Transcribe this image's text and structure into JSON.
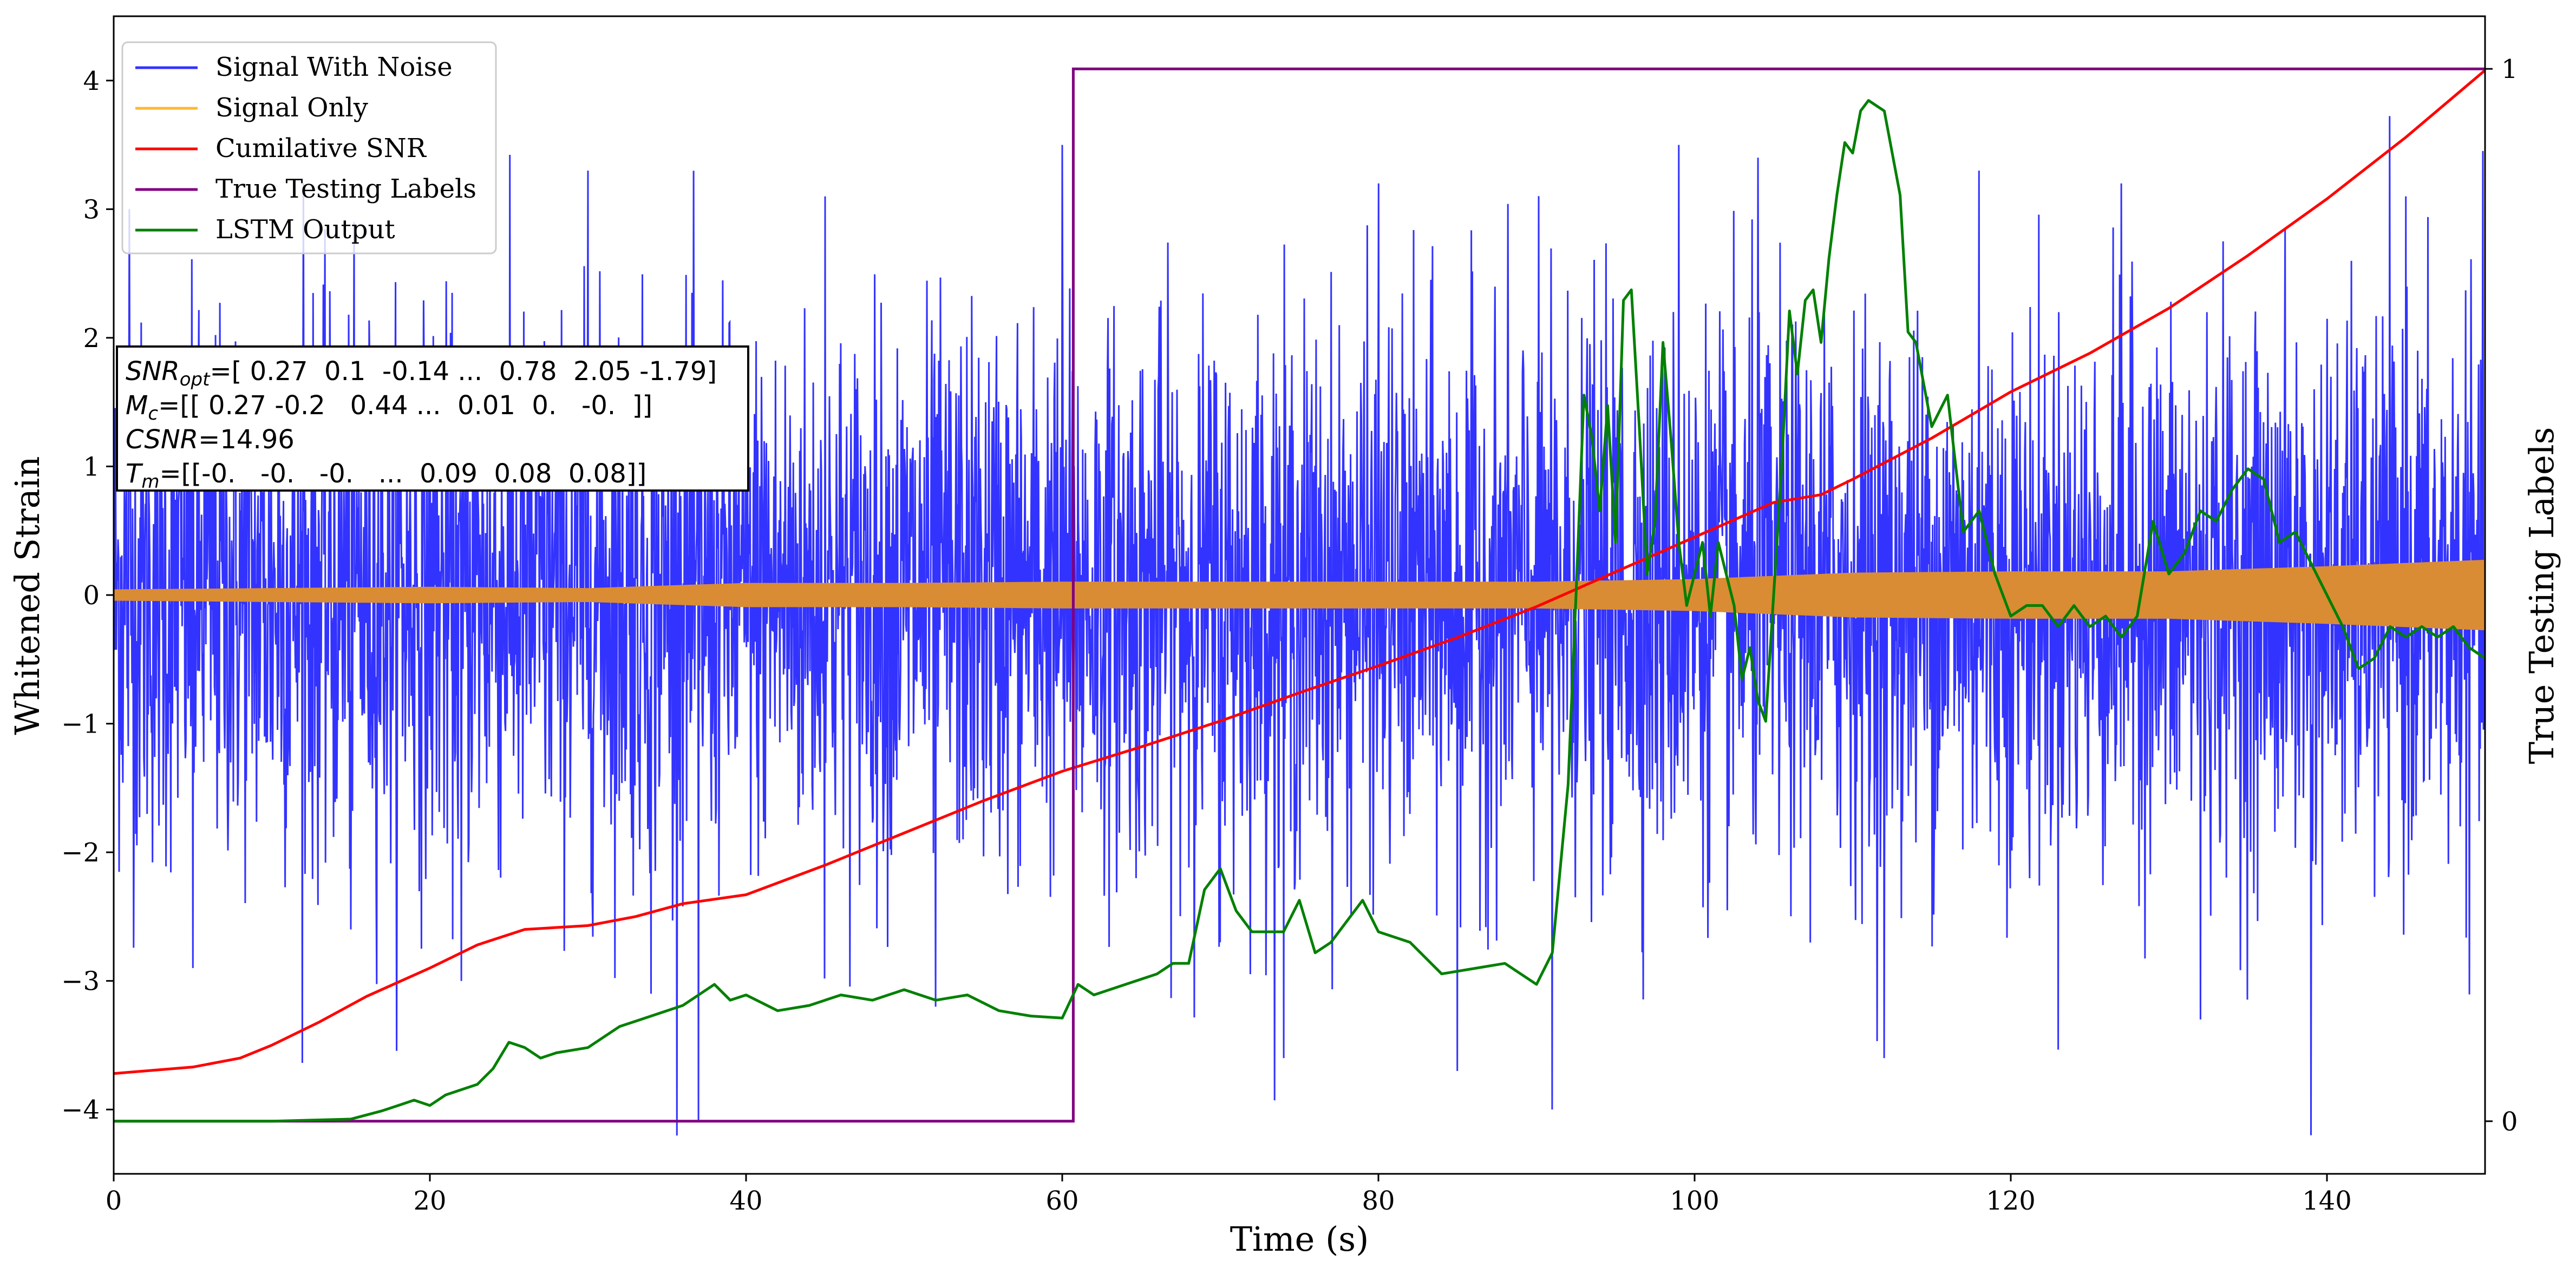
{
  "chart_data": {
    "type": "line",
    "xlabel": "Time (s)",
    "ylabel": "Whitened Strain",
    "y2label": "True Testing Labels",
    "xlim": [
      0,
      150
    ],
    "ylim": [
      -4.5,
      4.5
    ],
    "y2lim": [
      -0.05,
      1.05
    ],
    "xticks": [
      0,
      20,
      40,
      60,
      80,
      100,
      120,
      140
    ],
    "yticks": [
      -4,
      -3,
      -2,
      -1,
      0,
      1,
      2,
      3,
      4
    ],
    "y2ticks": [
      0,
      1
    ],
    "legend_position": "top-left",
    "colors": {
      "signal_with_noise": "#3333ff",
      "signal_only": "#d98c33",
      "signal_only_legend": "#ffb733",
      "cumulative_snr": "#ff0000",
      "true_labels": "#800080",
      "lstm": "#008000"
    },
    "series": [
      {
        "key": "signal_with_noise",
        "name": "Signal With Noise",
        "axis": "left",
        "envelope_x": [
          0,
          20,
          40,
          60,
          80,
          100,
          120,
          140,
          150
        ],
        "envelope_typical": [
          1.9,
          1.9,
          1.9,
          1.9,
          1.9,
          1.9,
          1.9,
          1.9,
          1.9
        ],
        "spike_x": [
          1,
          5,
          12,
          15,
          22,
          30,
          34,
          37,
          45,
          52,
          60,
          70,
          74,
          80,
          85,
          91,
          99,
          104,
          112,
          118,
          127,
          132,
          139,
          145
        ],
        "spike_y": [
          3.0,
          -2.9,
          3.2,
          -2.6,
          -3.0,
          3.3,
          -3.1,
          -4.1,
          3.1,
          -3.2,
          3.5,
          -2.7,
          -3.6,
          3.2,
          -3.7,
          -4.0,
          3.5,
          3.4,
          -3.6,
          3.3,
          3.2,
          -3.3,
          -4.2,
          3.1
        ]
      },
      {
        "key": "signal_only",
        "name": "Signal Only",
        "axis": "left",
        "x": [
          0,
          10,
          20,
          30,
          40,
          50,
          60,
          70,
          80,
          90,
          100,
          110,
          120,
          130,
          140,
          150
        ],
        "amplitude": [
          0.04,
          0.05,
          0.06,
          0.05,
          0.09,
          0.09,
          0.1,
          0.1,
          0.1,
          0.1,
          0.12,
          0.17,
          0.18,
          0.18,
          0.22,
          0.27
        ]
      },
      {
        "key": "cumulative_snr",
        "name": "Cumilative SNR",
        "axis": "left",
        "x": [
          0,
          5,
          8,
          10,
          13,
          16,
          20,
          23,
          26,
          30,
          33,
          36,
          40,
          45,
          50,
          55,
          60,
          65,
          70,
          75,
          80,
          85,
          90,
          95,
          100,
          105,
          108,
          110,
          115,
          120,
          125,
          130,
          135,
          140,
          145,
          150
        ],
        "y": [
          -3.72,
          -3.67,
          -3.6,
          -3.5,
          -3.32,
          -3.12,
          -2.9,
          -2.72,
          -2.6,
          -2.57,
          -2.5,
          -2.4,
          -2.33,
          -2.1,
          -1.85,
          -1.6,
          -1.37,
          -1.18,
          -0.98,
          -0.76,
          -0.55,
          -0.33,
          -0.09,
          0.18,
          0.45,
          0.72,
          0.78,
          0.9,
          1.22,
          1.58,
          1.88,
          2.23,
          2.64,
          3.08,
          3.56,
          4.08
        ]
      },
      {
        "key": "true_labels",
        "name": "True Testing Labels",
        "axis": "right",
        "x": [
          0,
          60.7,
          60.7,
          61.2,
          61.2,
          150
        ],
        "y": [
          0,
          0,
          1,
          1,
          1,
          1
        ]
      },
      {
        "key": "lstm",
        "name": "LSTM Output",
        "axis": "right",
        "x": [
          0,
          10,
          15,
          17,
          18,
          19,
          20,
          21,
          22,
          23,
          24,
          25,
          26,
          27,
          28,
          30,
          31,
          32,
          33,
          34,
          35,
          36,
          37,
          38,
          39,
          40,
          42,
          44,
          46,
          48,
          50,
          52,
          54,
          56,
          58,
          60,
          61,
          62,
          64,
          66,
          67,
          68,
          69,
          70,
          71,
          72,
          73,
          74,
          75,
          76,
          77,
          78,
          79,
          80,
          82,
          84,
          86,
          88,
          90,
          91,
          92,
          92.5,
          93,
          93.5,
          94,
          94.5,
          95,
          95.5,
          96,
          96.5,
          97,
          97.5,
          98,
          98.5,
          99,
          99.5,
          100,
          100.5,
          101,
          101.5,
          102,
          102.5,
          103,
          103.5,
          104,
          104.5,
          105,
          105.5,
          106,
          106.5,
          107,
          107.5,
          108,
          108.5,
          109,
          109.5,
          110,
          110.5,
          111,
          112,
          113,
          113.5,
          114,
          115,
          116,
          117,
          118,
          119,
          120,
          121,
          122,
          123,
          124,
          125,
          126,
          127,
          128,
          129,
          130,
          131,
          132,
          133,
          134,
          135,
          136,
          137,
          138,
          139,
          140,
          141,
          142,
          143,
          144,
          145,
          146,
          147,
          148,
          149,
          150
        ],
        "y": [
          0.0,
          0.0,
          0.002,
          0.01,
          0.015,
          0.02,
          0.015,
          0.025,
          0.03,
          0.035,
          0.05,
          0.075,
          0.07,
          0.06,
          0.065,
          0.07,
          0.08,
          0.09,
          0.095,
          0.1,
          0.105,
          0.11,
          0.12,
          0.13,
          0.115,
          0.12,
          0.105,
          0.11,
          0.12,
          0.115,
          0.125,
          0.115,
          0.12,
          0.105,
          0.1,
          0.098,
          0.13,
          0.12,
          0.13,
          0.14,
          0.15,
          0.15,
          0.22,
          0.24,
          0.2,
          0.18,
          0.18,
          0.18,
          0.21,
          0.16,
          0.17,
          0.19,
          0.21,
          0.18,
          0.17,
          0.14,
          0.145,
          0.15,
          0.13,
          0.16,
          0.32,
          0.5,
          0.69,
          0.65,
          0.58,
          0.68,
          0.55,
          0.78,
          0.79,
          0.66,
          0.52,
          0.57,
          0.74,
          0.65,
          0.55,
          0.49,
          0.52,
          0.55,
          0.48,
          0.55,
          0.52,
          0.49,
          0.42,
          0.45,
          0.4,
          0.38,
          0.5,
          0.62,
          0.77,
          0.71,
          0.78,
          0.79,
          0.74,
          0.82,
          0.88,
          0.93,
          0.92,
          0.96,
          0.97,
          0.96,
          0.88,
          0.75,
          0.74,
          0.66,
          0.69,
          0.56,
          0.58,
          0.52,
          0.48,
          0.49,
          0.49,
          0.47,
          0.49,
          0.47,
          0.48,
          0.46,
          0.48,
          0.57,
          0.52,
          0.54,
          0.58,
          0.57,
          0.6,
          0.62,
          0.61,
          0.55,
          0.56,
          0.53,
          0.5,
          0.47,
          0.43,
          0.44,
          0.47,
          0.46,
          0.47,
          0.46,
          0.47,
          0.45,
          0.44
        ]
      }
    ],
    "annotation_lines": [
      {
        "label": "SNR",
        "subscript": "opt",
        "value": "=[ 0.27  0.1  -0.14 ...  0.78  2.05 -1.79]"
      },
      {
        "label": "M",
        "subscript": "c",
        "value": "=[[ 0.27 -0.2   0.44 ...  0.01  0.   -0.  ]]"
      },
      {
        "label": "CSNR",
        "subscript": "",
        "value": "=14.96"
      },
      {
        "label": "T",
        "subscript": "m",
        "value": "=[[-0.   -0.   -0.   ...  0.09  0.08  0.08]]"
      }
    ]
  }
}
